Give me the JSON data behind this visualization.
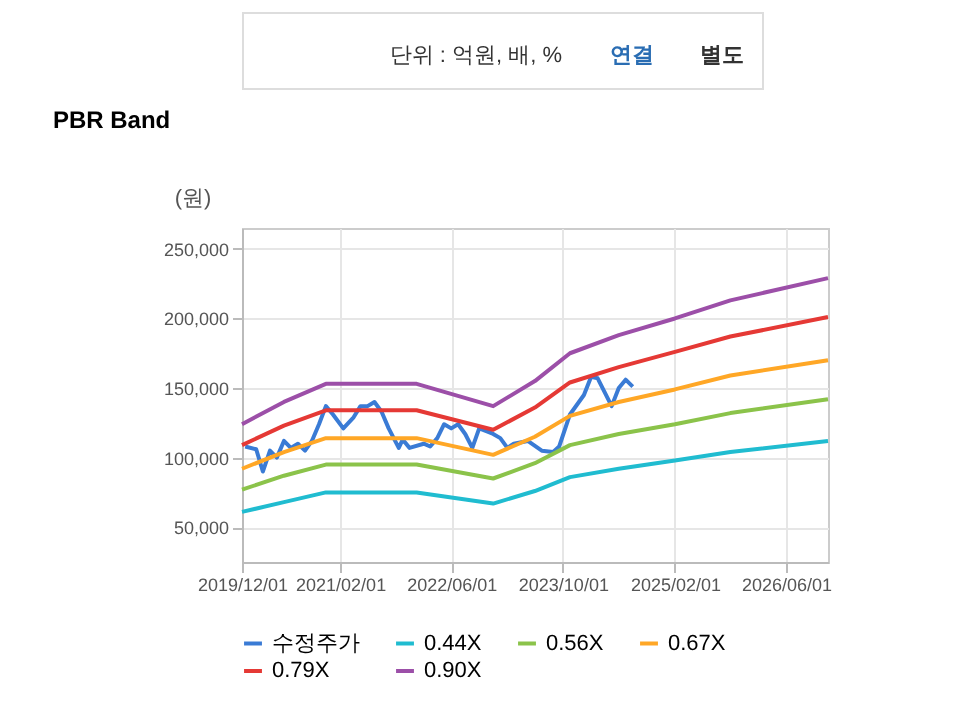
{
  "chart_data": {
    "type": "line",
    "title": "PBR Band",
    "ylabel": "(원)",
    "annotations": [
      "단위 : 억원, 배, %",
      "연결",
      "별도"
    ],
    "xlim": [
      "2019-12-01",
      "2026-12-01"
    ],
    "xticks": [
      {
        "value": "2019-12-01",
        "label": "2019/12/01"
      },
      {
        "value": "2021-02-01",
        "label": "2021/02/01"
      },
      {
        "value": "2022-06-01",
        "label": "2022/06/01"
      },
      {
        "value": "2023-10-01",
        "label": "2023/10/01"
      },
      {
        "value": "2025-02-01",
        "label": "2025/02/01"
      },
      {
        "value": "2026-06-01",
        "label": "2026/06/01"
      }
    ],
    "ylim": [
      25000,
      265000
    ],
    "yticks": [
      {
        "value": 50000,
        "label": "50,000"
      },
      {
        "value": 100000,
        "label": "100,000"
      },
      {
        "value": 150000,
        "label": "150,000"
      },
      {
        "value": 200000,
        "label": "200,000"
      },
      {
        "value": 250000,
        "label": "250,000"
      }
    ],
    "grid": true,
    "legend": "bottom",
    "line_style": "solid",
    "series": [
      {
        "name": "수정주가",
        "color": "#3a7bd5",
        "x": [
          "2019-12-15",
          "2020-02-01",
          "2020-03-01",
          "2020-04-01",
          "2020-05-01",
          "2020-06-01",
          "2020-07-01",
          "2020-08-01",
          "2020-09-01",
          "2020-10-01",
          "2020-11-01",
          "2020-12-01",
          "2021-01-01",
          "2021-02-15",
          "2021-04-01",
          "2021-05-01",
          "2021-06-01",
          "2021-07-01",
          "2021-08-01",
          "2021-09-01",
          "2021-10-15",
          "2021-11-01",
          "2021-12-01",
          "2022-02-01",
          "2022-03-01",
          "2022-04-01",
          "2022-05-01",
          "2022-06-01",
          "2022-07-01",
          "2022-08-01",
          "2022-09-01",
          "2022-10-01",
          "2022-11-01",
          "2022-12-01",
          "2023-01-01",
          "2023-02-01",
          "2023-03-01",
          "2023-05-01",
          "2023-07-01",
          "2023-08-20",
          "2023-09-15",
          "2023-11-01",
          "2024-01-01",
          "2024-02-01",
          "2024-03-01",
          "2024-05-01",
          "2024-06-01",
          "2024-07-01",
          "2024-08-01"
        ],
        "values": [
          108000,
          106000,
          90000,
          105000,
          100000,
          112000,
          107000,
          110000,
          105000,
          112000,
          124000,
          137000,
          131000,
          121000,
          129000,
          137000,
          137000,
          140000,
          133000,
          121000,
          107000,
          113000,
          107000,
          110000,
          108000,
          114000,
          124000,
          121000,
          124000,
          117000,
          107000,
          121000,
          119000,
          117000,
          114000,
          107000,
          110000,
          112000,
          105000,
          104000,
          108000,
          131000,
          145000,
          158000,
          157000,
          137000,
          150000,
          156000,
          151000
        ]
      },
      {
        "name": "0.44X",
        "color": "#20bcd0",
        "x": [
          "2019-12-01",
          "2020-06-01",
          "2020-12-01",
          "2022-01-01",
          "2022-12-01",
          "2023-06-01",
          "2023-11-01",
          "2024-06-01",
          "2025-02-01",
          "2025-10-01",
          "2026-12-01"
        ],
        "values": [
          61000,
          68000,
          75000,
          75000,
          67000,
          76000,
          86000,
          92000,
          98000,
          104000,
          112000
        ]
      },
      {
        "name": "0.56X",
        "color": "#8bc34a",
        "x": [
          "2019-12-01",
          "2020-06-01",
          "2020-12-01",
          "2022-01-01",
          "2022-12-01",
          "2023-06-01",
          "2023-11-01",
          "2024-06-01",
          "2025-02-01",
          "2025-10-01",
          "2026-12-01"
        ],
        "values": [
          77000,
          87000,
          95000,
          95000,
          85000,
          96000,
          109000,
          117000,
          124000,
          132000,
          142000
        ]
      },
      {
        "name": "0.67X",
        "color": "#ffa726",
        "x": [
          "2019-12-01",
          "2020-06-01",
          "2020-12-01",
          "2022-01-01",
          "2022-12-01",
          "2023-06-01",
          "2023-11-01",
          "2024-06-01",
          "2025-02-01",
          "2025-10-01",
          "2026-12-01"
        ],
        "values": [
          92000,
          104000,
          114000,
          114000,
          102000,
          115000,
          130000,
          140000,
          149000,
          159000,
          170000
        ]
      },
      {
        "name": "0.79X",
        "color": "#e53935",
        "x": [
          "2019-12-01",
          "2020-06-01",
          "2020-12-01",
          "2022-01-01",
          "2022-12-01",
          "2023-06-01",
          "2023-11-01",
          "2024-06-01",
          "2025-02-01",
          "2025-10-01",
          "2026-12-01"
        ],
        "values": [
          109000,
          123000,
          134000,
          134000,
          120000,
          136000,
          154000,
          165000,
          176000,
          187000,
          201000
        ]
      },
      {
        "name": "0.90X",
        "color": "#9c4fa8",
        "x": [
          "2019-12-01",
          "2020-06-01",
          "2020-12-01",
          "2022-01-01",
          "2022-12-01",
          "2023-06-01",
          "2023-11-01",
          "2024-06-01",
          "2025-02-01",
          "2025-10-01",
          "2026-12-01"
        ],
        "values": [
          124000,
          140000,
          153000,
          153000,
          137000,
          155000,
          175000,
          188000,
          200000,
          213000,
          229000
        ]
      }
    ]
  }
}
